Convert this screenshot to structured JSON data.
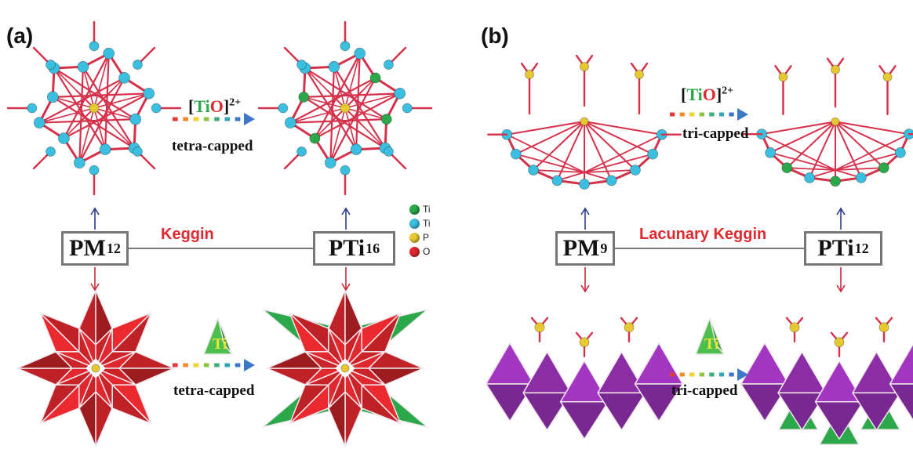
{
  "panel_a": {
    "label": "(a)",
    "left_box": {
      "main": "PM",
      "sub": "12"
    },
    "right_box": {
      "main": "PTi",
      "sub": "16"
    },
    "center_label": "Keggin",
    "top_formula": {
      "open": "[",
      "ti": "Ti",
      "o": "O",
      "close": "]",
      "sup": "2+"
    },
    "top_capped": "tetra-capped",
    "bottom_capped": "tetra-capped",
    "ti_tetra_label": "Ti",
    "legend": [
      {
        "label": "Ti",
        "color": "#2aa84a"
      },
      {
        "label": "Ti",
        "color": "#3bbfe0"
      },
      {
        "label": "P",
        "color": "#e8c830"
      },
      {
        "label": "O",
        "color": "#e0282e"
      }
    ]
  },
  "panel_b": {
    "label": "(b)",
    "left_box": {
      "main": "PM",
      "sub": "9"
    },
    "right_box": {
      "main": "PTi",
      "sub": "12"
    },
    "center_label": "Lacunary Keggin",
    "top_formula": {
      "open": "[",
      "ti": "Ti",
      "o": "O",
      "close": "]",
      "sup": "2+"
    },
    "top_capped": "tri-capped",
    "bottom_capped": "tri-capped",
    "ti_tetra_label": "Ti"
  },
  "colors": {
    "bond_red": "#d6304a",
    "atom_cyan": "#3bbfe0",
    "atom_green": "#2aa84a",
    "atom_yellow": "#e8c830",
    "poly_red": "#e0282e",
    "poly_purple": "#9a33b8",
    "poly_green": "#2aa84a",
    "arrow_blue": "#2a3a8c",
    "arrow_red": "#c8283a"
  }
}
